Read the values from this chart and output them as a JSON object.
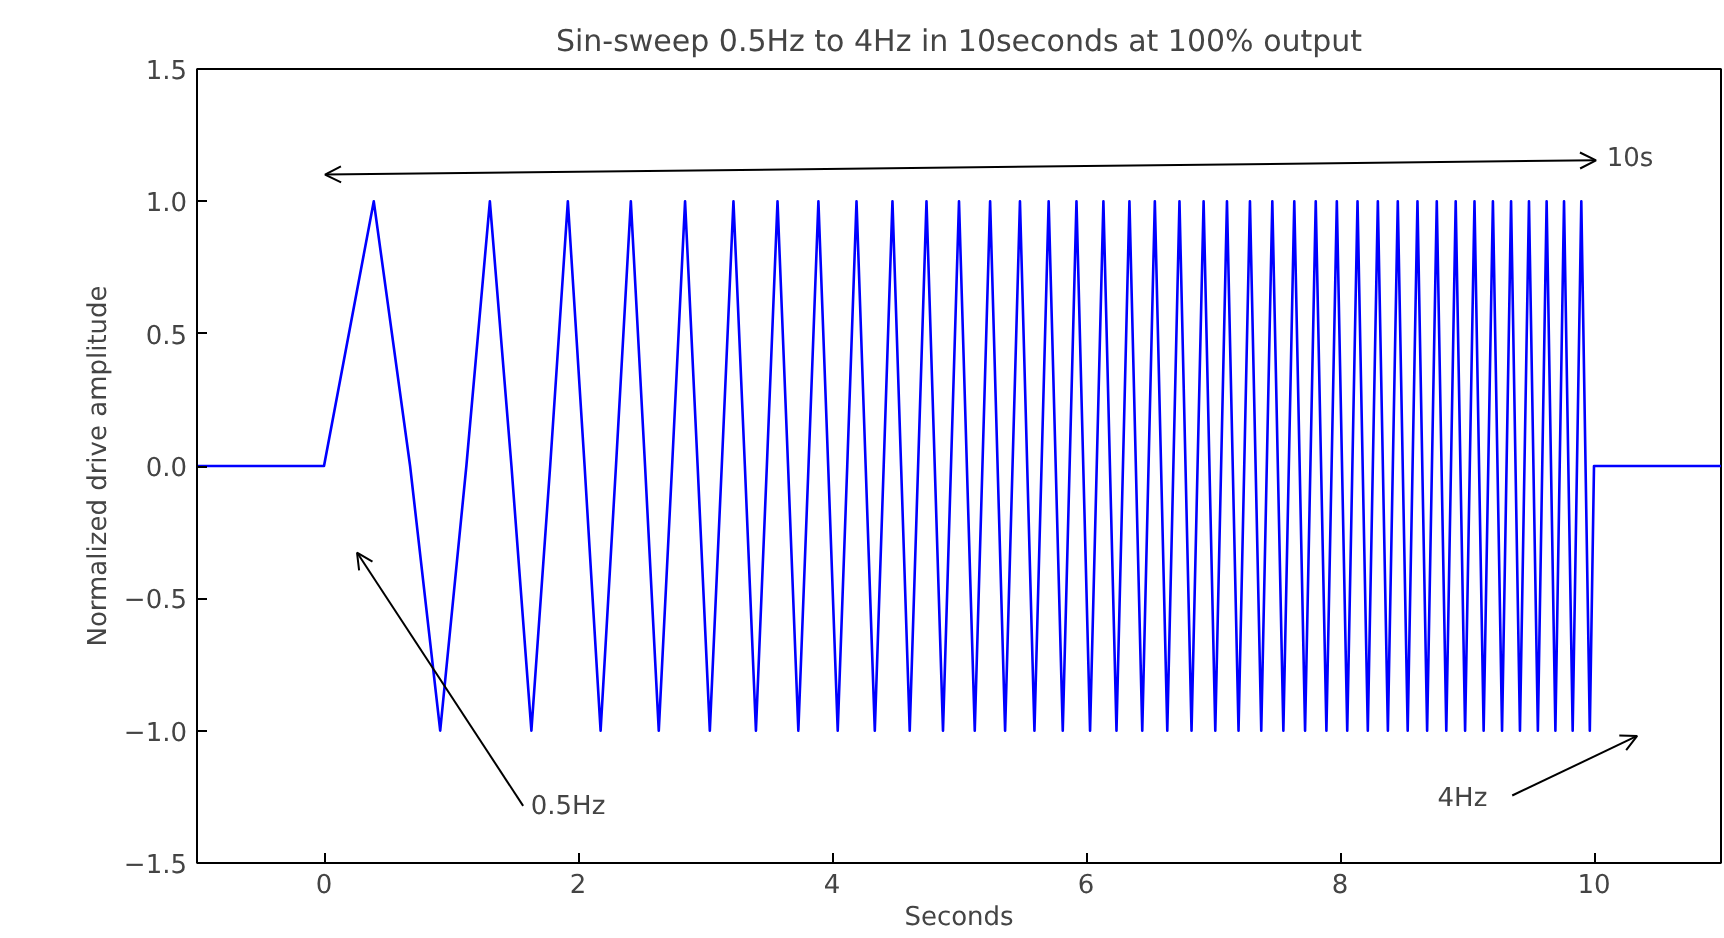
{
  "chart_data": {
    "type": "line",
    "title": "Sin-sweep 0.5Hz to 4Hz in 10seconds at 100% output",
    "xlabel": "Seconds",
    "ylabel": "Normalized drive amplitude",
    "series": [
      {
        "color": "#0000ff",
        "x": [
          -1,
          0,
          0.392,
          0.678,
          0.915,
          1.121,
          1.306,
          1.476,
          1.633,
          1.781,
          1.92,
          2.052,
          2.178,
          2.299,
          2.416,
          2.528,
          2.636,
          2.741,
          2.843,
          2.942,
          3.038,
          3.132,
          3.224,
          3.314,
          3.401,
          3.487,
          3.571,
          3.654,
          3.735,
          3.815,
          3.893,
          3.97,
          4.045,
          4.12,
          4.193,
          4.265,
          4.337,
          4.407,
          4.476,
          4.544,
          4.612,
          4.678,
          4.744,
          4.874,
          5.0,
          5.124,
          5.245,
          5.363,
          5.48,
          5.594,
          5.706,
          5.817,
          5.925,
          6.032,
          6.137,
          6.24,
          6.342,
          6.443,
          6.542,
          6.64,
          6.736,
          6.831,
          6.926,
          7.018,
          7.11,
          7.201,
          7.291,
          7.38,
          7.467,
          7.554,
          7.64,
          7.725,
          7.809,
          7.893,
          7.975,
          8.057,
          8.138,
          8.219,
          8.298,
          8.377,
          8.455,
          8.533,
          8.61,
          8.686,
          8.762,
          8.837,
          8.911,
          8.985,
          9.059,
          9.131,
          9.204,
          9.276,
          9.347,
          9.417,
          9.488,
          9.558,
          9.627,
          9.696,
          9.764,
          9.832,
          9.9,
          9.967,
          10,
          11
        ],
        "values": [
          0,
          0,
          1,
          0,
          -1,
          0,
          1,
          0,
          -1,
          0,
          1,
          0,
          -1,
          0,
          1,
          0,
          -1,
          0,
          1,
          0,
          -1,
          0,
          1,
          0,
          -1,
          0,
          1,
          0,
          -1,
          0,
          1,
          0,
          -1,
          0,
          1,
          0,
          -1,
          0,
          1,
          0,
          -1,
          0,
          1,
          -1,
          1,
          -1,
          1,
          -1,
          1,
          -1,
          1,
          -1,
          1,
          -1,
          1,
          -1,
          1,
          -1,
          1,
          -1,
          1,
          -1,
          1,
          -1,
          1,
          -1,
          1,
          -1,
          1,
          -1,
          1,
          -1,
          1,
          -1,
          1,
          -1,
          1,
          -1,
          1,
          -1,
          1,
          -1,
          1,
          -1,
          1,
          -1,
          1,
          -1,
          1,
          -1,
          1,
          -1,
          1,
          -1,
          1,
          -1,
          1,
          -1,
          1,
          -1,
          1,
          -1,
          0,
          0
        ]
      }
    ],
    "xlim": [
      -1,
      11
    ],
    "ylim": [
      -1.5,
      1.5
    ],
    "xticks": [
      0,
      2,
      4,
      6,
      8,
      10
    ],
    "yticks": [
      {
        "value": -1.5,
        "label": "−1.5"
      },
      {
        "value": -1.0,
        "label": "−1.0"
      },
      {
        "value": -0.5,
        "label": "−0.5"
      },
      {
        "value": 0,
        "label": "0.0"
      },
      {
        "value": 0.5,
        "label": "0.5"
      },
      {
        "value": 1.0,
        "label": "1.0"
      },
      {
        "value": 1.5,
        "label": "1.5"
      }
    ],
    "grid": false,
    "marker": "none",
    "line_style": "solid",
    "annotations": [
      "10s",
      "0.5Hz",
      "4Hz"
    ]
  }
}
